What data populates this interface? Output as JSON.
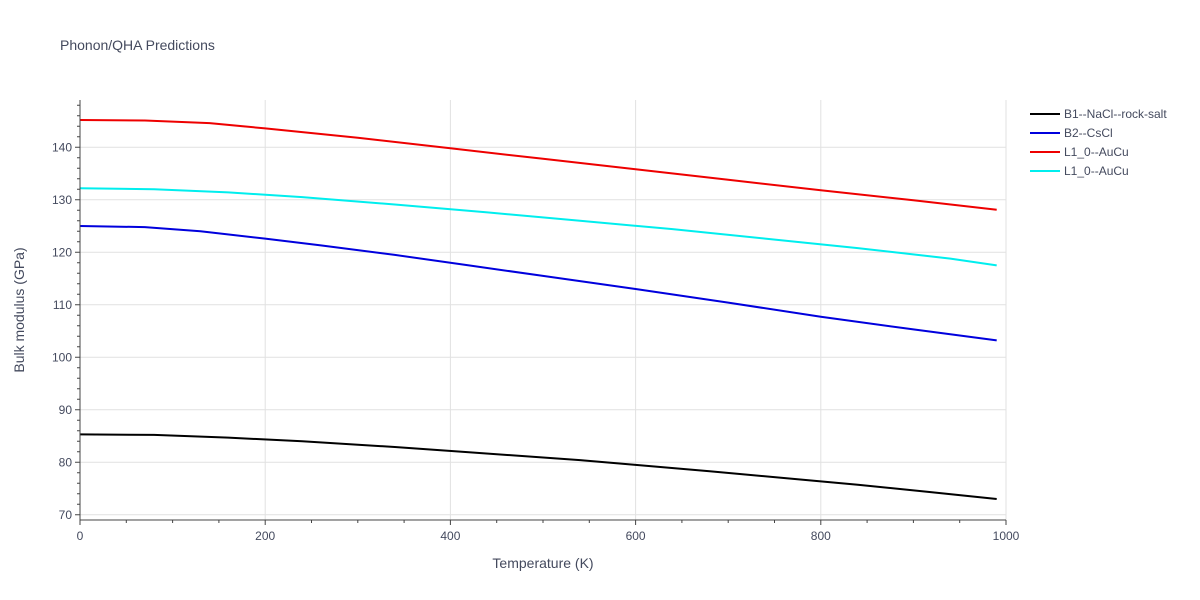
{
  "chart_data": {
    "type": "line",
    "title": "Phonon/QHA Predictions",
    "xlabel": "Temperature (K)",
    "ylabel": "Bulk modulus (GPa)",
    "xlim": [
      0,
      1000
    ],
    "ylim": [
      69,
      149
    ],
    "x_ticks": [
      0,
      200,
      400,
      600,
      800,
      1000
    ],
    "x_tick_labels": [
      "0",
      "200",
      "400",
      "600",
      "800",
      "1000"
    ],
    "y_ticks": [
      70,
      80,
      90,
      100,
      110,
      120,
      130,
      140
    ],
    "y_tick_labels": [
      "70",
      "80",
      "90",
      "100",
      "110",
      "120",
      "130",
      "140"
    ],
    "grid": true,
    "legend_position": "top-right",
    "series": [
      {
        "name": "B1--NaCl--rock-salt",
        "color": "#000000",
        "x": [
          0,
          80,
          160,
          240,
          340,
          420,
          540,
          600,
          680,
          760,
          840,
          920,
          990
        ],
        "y": [
          85.3,
          85.2,
          84.7,
          84.0,
          82.9,
          81.9,
          80.4,
          79.5,
          78.3,
          77.0,
          75.7,
          74.3,
          73.0
        ]
      },
      {
        "name": "B2--CsCl",
        "color": "#0000dd",
        "x": [
          0,
          70,
          130,
          200,
          260,
          340,
          420,
          500,
          600,
          700,
          800,
          900,
          990
        ],
        "y": [
          125.0,
          124.8,
          124.0,
          122.6,
          121.3,
          119.5,
          117.5,
          115.5,
          113.0,
          110.4,
          107.7,
          105.3,
          103.2
        ]
      },
      {
        "name": "L1_0--AuCu",
        "color": "#ee0000",
        "x": [
          0,
          70,
          140,
          200,
          300,
          400,
          500,
          600,
          700,
          800,
          900,
          990
        ],
        "y": [
          145.2,
          145.1,
          144.6,
          143.6,
          141.8,
          139.8,
          137.8,
          135.8,
          133.8,
          131.8,
          129.9,
          128.1
        ]
      },
      {
        "name": "L1_0--AuCu",
        "color": "#00eeee",
        "x": [
          0,
          80,
          160,
          240,
          340,
          440,
          540,
          640,
          740,
          840,
          940,
          990
        ],
        "y": [
          132.2,
          132.0,
          131.4,
          130.5,
          129.1,
          127.6,
          126.0,
          124.4,
          122.6,
          120.8,
          118.8,
          117.5
        ]
      }
    ]
  }
}
